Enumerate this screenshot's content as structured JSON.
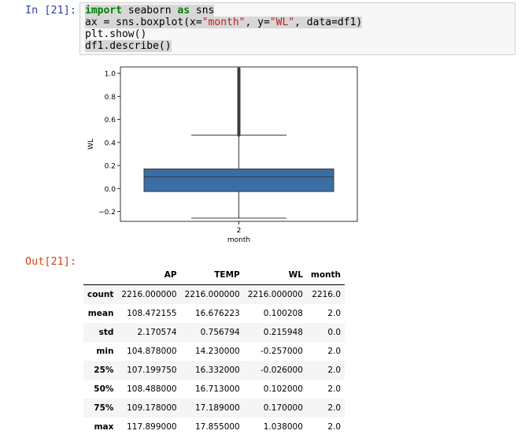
{
  "cell": {
    "in_prompt": "In [21]:",
    "out_prompt": "Out[21]:",
    "code": {
      "l1_kw1": "import",
      "l1_mid": " seaborn ",
      "l1_kw2": "as",
      "l1_end": " sns",
      "l2_a": "ax = sns.boxplot(x=",
      "l2_s1": "\"month\"",
      "l2_b": ", y=",
      "l2_s2": "\"WL\"",
      "l2_c": ", data=df1)",
      "l3": "plt.show()",
      "l4": "df1.describe()"
    }
  },
  "chart_data": {
    "type": "box",
    "xlabel": "month",
    "ylabel": "WL",
    "categories": [
      "2"
    ],
    "ylim": [
      -0.285,
      1.055
    ],
    "yticks": [
      -0.2,
      0.0,
      0.2,
      0.4,
      0.6,
      0.8,
      1.0
    ],
    "ytick_labels": [
      "−0.2",
      "0.0",
      "0.2",
      "0.4",
      "0.6",
      "0.8",
      "1.0"
    ],
    "box": {
      "min": -0.257,
      "q1": -0.026,
      "median": 0.102,
      "q3": 0.17,
      "whisker_high": 0.464,
      "max": 1.038
    },
    "box_color": "#3a6ea5",
    "grid": false
  },
  "table": {
    "columns": [
      "",
      "AP",
      "TEMP",
      "WL",
      "month"
    ],
    "rows": [
      {
        "label": "count",
        "values": [
          "2216.000000",
          "2216.000000",
          "2216.000000",
          "2216.0"
        ]
      },
      {
        "label": "mean",
        "values": [
          "108.472155",
          "16.676223",
          "0.100208",
          "2.0"
        ]
      },
      {
        "label": "std",
        "values": [
          "2.170574",
          "0.756794",
          "0.215948",
          "0.0"
        ]
      },
      {
        "label": "min",
        "values": [
          "104.878000",
          "14.230000",
          "-0.257000",
          "2.0"
        ]
      },
      {
        "label": "25%",
        "values": [
          "107.199750",
          "16.332000",
          "-0.026000",
          "2.0"
        ]
      },
      {
        "label": "50%",
        "values": [
          "108.488000",
          "16.713000",
          "0.102000",
          "2.0"
        ]
      },
      {
        "label": "75%",
        "values": [
          "109.178000",
          "17.189000",
          "0.170000",
          "2.0"
        ]
      },
      {
        "label": "max",
        "values": [
          "117.899000",
          "17.855000",
          "1.038000",
          "2.0"
        ]
      }
    ]
  }
}
